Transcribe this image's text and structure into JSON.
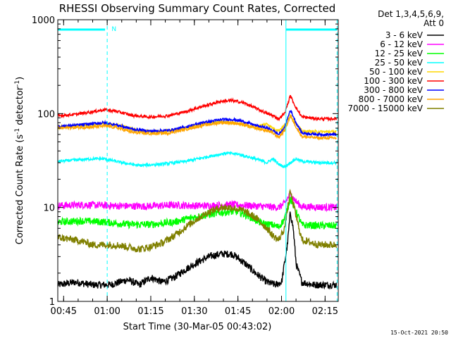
{
  "chart_data": {
    "type": "line",
    "title": "RHESSI Observing Summary Count Rates, Corrected",
    "xlabel": "Start Time (30-Mar-05 00:43:02)",
    "ylabel_main": "Corrected Count Rate (s",
    "ylabel_sup1": "-1",
    "ylabel_mid": " detector",
    "ylabel_sup2": "-1",
    "ylabel_end": ")",
    "ylabel_full": "Corrected Count Rate (s-1 detector-1)",
    "yscale": "log",
    "ylim": [
      1,
      1000
    ],
    "xlim_minutes": [
      -0.04,
      96.5
    ],
    "yticks": [
      {
        "value": 1,
        "label": "1"
      },
      {
        "value": 10,
        "label": "10"
      },
      {
        "value": 100,
        "label": "100"
      },
      {
        "value": 1000,
        "label": "1000"
      }
    ],
    "xticks": [
      {
        "minute": 1.97,
        "label": "00:45"
      },
      {
        "minute": 16.97,
        "label": "01:00"
      },
      {
        "minute": 31.97,
        "label": "01:15"
      },
      {
        "minute": 46.97,
        "label": "01:30"
      },
      {
        "minute": 61.97,
        "label": "01:45"
      },
      {
        "minute": 76.97,
        "label": "02:00"
      },
      {
        "minute": 91.97,
        "label": "02:15"
      }
    ],
    "legend_header": [
      "Det 1,3,4,5,6,9,",
      "Att 0"
    ],
    "legend_position": "right",
    "series": [
      {
        "name": "3 - 6 keV",
        "color": "#000000",
        "points": [
          [
            0,
            1.5
          ],
          [
            6,
            1.6
          ],
          [
            12,
            1.5
          ],
          [
            18,
            1.5
          ],
          [
            24,
            1.7
          ],
          [
            28,
            1.5
          ],
          [
            32,
            1.8
          ],
          [
            36,
            1.6
          ],
          [
            40,
            1.8
          ],
          [
            44,
            2.2
          ],
          [
            48,
            2.6
          ],
          [
            52,
            3.0
          ],
          [
            56,
            3.2
          ],
          [
            60,
            3.2
          ],
          [
            64,
            2.6
          ],
          [
            68,
            2.0
          ],
          [
            72,
            1.6
          ],
          [
            75,
            1.5
          ],
          [
            77,
            1.6
          ],
          [
            79,
            4.0
          ],
          [
            80,
            9.0
          ],
          [
            81,
            6.0
          ],
          [
            82,
            2.5
          ],
          [
            84,
            1.6
          ],
          [
            88,
            1.5
          ],
          [
            92,
            1.5
          ],
          [
            96,
            1.5
          ]
        ]
      },
      {
        "name": "6 - 12 keV",
        "color": "#ff00ff",
        "points": [
          [
            0,
            10.5
          ],
          [
            10,
            10.7
          ],
          [
            20,
            10.4
          ],
          [
            30,
            10.3
          ],
          [
            40,
            10.6
          ],
          [
            50,
            10.4
          ],
          [
            60,
            10.7
          ],
          [
            70,
            10.3
          ],
          [
            76,
            10.0
          ],
          [
            78,
            11.0
          ],
          [
            80,
            14.0
          ],
          [
            82,
            11.5
          ],
          [
            84,
            10.2
          ],
          [
            90,
            10.1
          ],
          [
            96,
            10.0
          ]
        ]
      },
      {
        "name": "12 - 25 keV",
        "color": "#00ff00",
        "points": [
          [
            0,
            7.0
          ],
          [
            8,
            7.2
          ],
          [
            16,
            7.0
          ],
          [
            24,
            6.6
          ],
          [
            32,
            6.6
          ],
          [
            40,
            7.0
          ],
          [
            46,
            7.8
          ],
          [
            52,
            8.4
          ],
          [
            58,
            9.0
          ],
          [
            62,
            9.0
          ],
          [
            66,
            8.0
          ],
          [
            70,
            6.8
          ],
          [
            74,
            6.5
          ],
          [
            76,
            6.2
          ],
          [
            78,
            7.5
          ],
          [
            80,
            12.5
          ],
          [
            82,
            9.0
          ],
          [
            84,
            6.5
          ],
          [
            90,
            6.4
          ],
          [
            96,
            6.4
          ]
        ]
      },
      {
        "name": "25 - 50 keV",
        "color": "#00ffff",
        "points": [
          [
            0,
            31
          ],
          [
            6,
            32
          ],
          [
            12,
            33
          ],
          [
            16,
            33
          ],
          [
            22,
            30
          ],
          [
            28,
            28
          ],
          [
            36,
            29
          ],
          [
            44,
            31
          ],
          [
            52,
            35
          ],
          [
            58,
            38
          ],
          [
            62,
            37
          ],
          [
            68,
            33
          ],
          [
            72,
            30
          ],
          [
            74,
            33
          ],
          [
            76,
            29
          ],
          [
            78,
            27
          ],
          [
            80,
            30
          ],
          [
            82,
            33
          ],
          [
            84,
            31
          ],
          [
            90,
            30
          ],
          [
            96,
            30
          ]
        ]
      },
      {
        "name": "50 - 100 keV",
        "color": "#ffd700",
        "points": [
          [
            0,
            72
          ],
          [
            6,
            74
          ],
          [
            12,
            76
          ],
          [
            16,
            78
          ],
          [
            22,
            74
          ],
          [
            28,
            65
          ],
          [
            36,
            64
          ],
          [
            44,
            70
          ],
          [
            50,
            78
          ],
          [
            56,
            82
          ],
          [
            60,
            80
          ],
          [
            64,
            76
          ],
          [
            68,
            70
          ],
          [
            70,
            75
          ],
          [
            72,
            78
          ],
          [
            74,
            70
          ],
          [
            76,
            66
          ],
          [
            78,
            75
          ],
          [
            80,
            97
          ],
          [
            82,
            78
          ],
          [
            84,
            65
          ],
          [
            90,
            64
          ],
          [
            96,
            64
          ]
        ]
      },
      {
        "name": "100 - 300 keV",
        "color": "#ff0000",
        "points": [
          [
            0,
            95
          ],
          [
            6,
            98
          ],
          [
            12,
            105
          ],
          [
            16,
            110
          ],
          [
            20,
            106
          ],
          [
            26,
            95
          ],
          [
            32,
            92
          ],
          [
            38,
            95
          ],
          [
            44,
            105
          ],
          [
            50,
            120
          ],
          [
            56,
            135
          ],
          [
            60,
            138
          ],
          [
            64,
            130
          ],
          [
            68,
            115
          ],
          [
            72,
            100
          ],
          [
            74,
            95
          ],
          [
            76,
            88
          ],
          [
            78,
            100
          ],
          [
            80,
            155
          ],
          [
            82,
            115
          ],
          [
            84,
            92
          ],
          [
            90,
            88
          ],
          [
            96,
            88
          ]
        ]
      },
      {
        "name": "300 - 800 keV",
        "color": "#0000ff",
        "points": [
          [
            0,
            73
          ],
          [
            6,
            75
          ],
          [
            12,
            78
          ],
          [
            16,
            80
          ],
          [
            20,
            76
          ],
          [
            26,
            68
          ],
          [
            32,
            65
          ],
          [
            38,
            66
          ],
          [
            44,
            72
          ],
          [
            50,
            80
          ],
          [
            56,
            86
          ],
          [
            60,
            87
          ],
          [
            64,
            82
          ],
          [
            68,
            75
          ],
          [
            72,
            70
          ],
          [
            74,
            66
          ],
          [
            76,
            60
          ],
          [
            78,
            70
          ],
          [
            80,
            110
          ],
          [
            82,
            80
          ],
          [
            84,
            62
          ],
          [
            90,
            60
          ],
          [
            96,
            60
          ]
        ]
      },
      {
        "name": "800 - 7000 keV",
        "color": "#ffa500",
        "points": [
          [
            0,
            70
          ],
          [
            6,
            71
          ],
          [
            12,
            72
          ],
          [
            16,
            74
          ],
          [
            20,
            71
          ],
          [
            26,
            63
          ],
          [
            32,
            61
          ],
          [
            38,
            62
          ],
          [
            44,
            68
          ],
          [
            50,
            75
          ],
          [
            56,
            80
          ],
          [
            60,
            80
          ],
          [
            64,
            76
          ],
          [
            68,
            70
          ],
          [
            72,
            66
          ],
          [
            74,
            62
          ],
          [
            76,
            56
          ],
          [
            78,
            66
          ],
          [
            80,
            95
          ],
          [
            82,
            72
          ],
          [
            84,
            57
          ],
          [
            90,
            55
          ],
          [
            96,
            55
          ]
        ]
      },
      {
        "name": "7000 - 15000 keV",
        "color": "#808000",
        "points": [
          [
            0,
            4.8
          ],
          [
            4,
            4.6
          ],
          [
            8,
            4.4
          ],
          [
            12,
            4.0
          ],
          [
            16,
            4.0
          ],
          [
            20,
            4.0
          ],
          [
            24,
            3.8
          ],
          [
            28,
            3.6
          ],
          [
            32,
            3.8
          ],
          [
            36,
            4.2
          ],
          [
            40,
            5.0
          ],
          [
            44,
            6.2
          ],
          [
            48,
            7.6
          ],
          [
            52,
            9.0
          ],
          [
            56,
            10.0
          ],
          [
            60,
            10.0
          ],
          [
            64,
            9.2
          ],
          [
            68,
            7.8
          ],
          [
            72,
            6.0
          ],
          [
            74,
            5.0
          ],
          [
            76,
            4.5
          ],
          [
            78,
            6.0
          ],
          [
            80,
            15.0
          ],
          [
            82,
            8.0
          ],
          [
            84,
            4.5
          ],
          [
            90,
            4.0
          ],
          [
            96,
            4.0
          ]
        ]
      }
    ],
    "attenuator_markers": {
      "color": "#00ffff",
      "vertical_lines_minutes": [
        16.97,
        78.5,
        96.1
      ],
      "label": "N",
      "label_minute": 18.5
    },
    "timestamp": "15-Oct-2021 20:50"
  }
}
